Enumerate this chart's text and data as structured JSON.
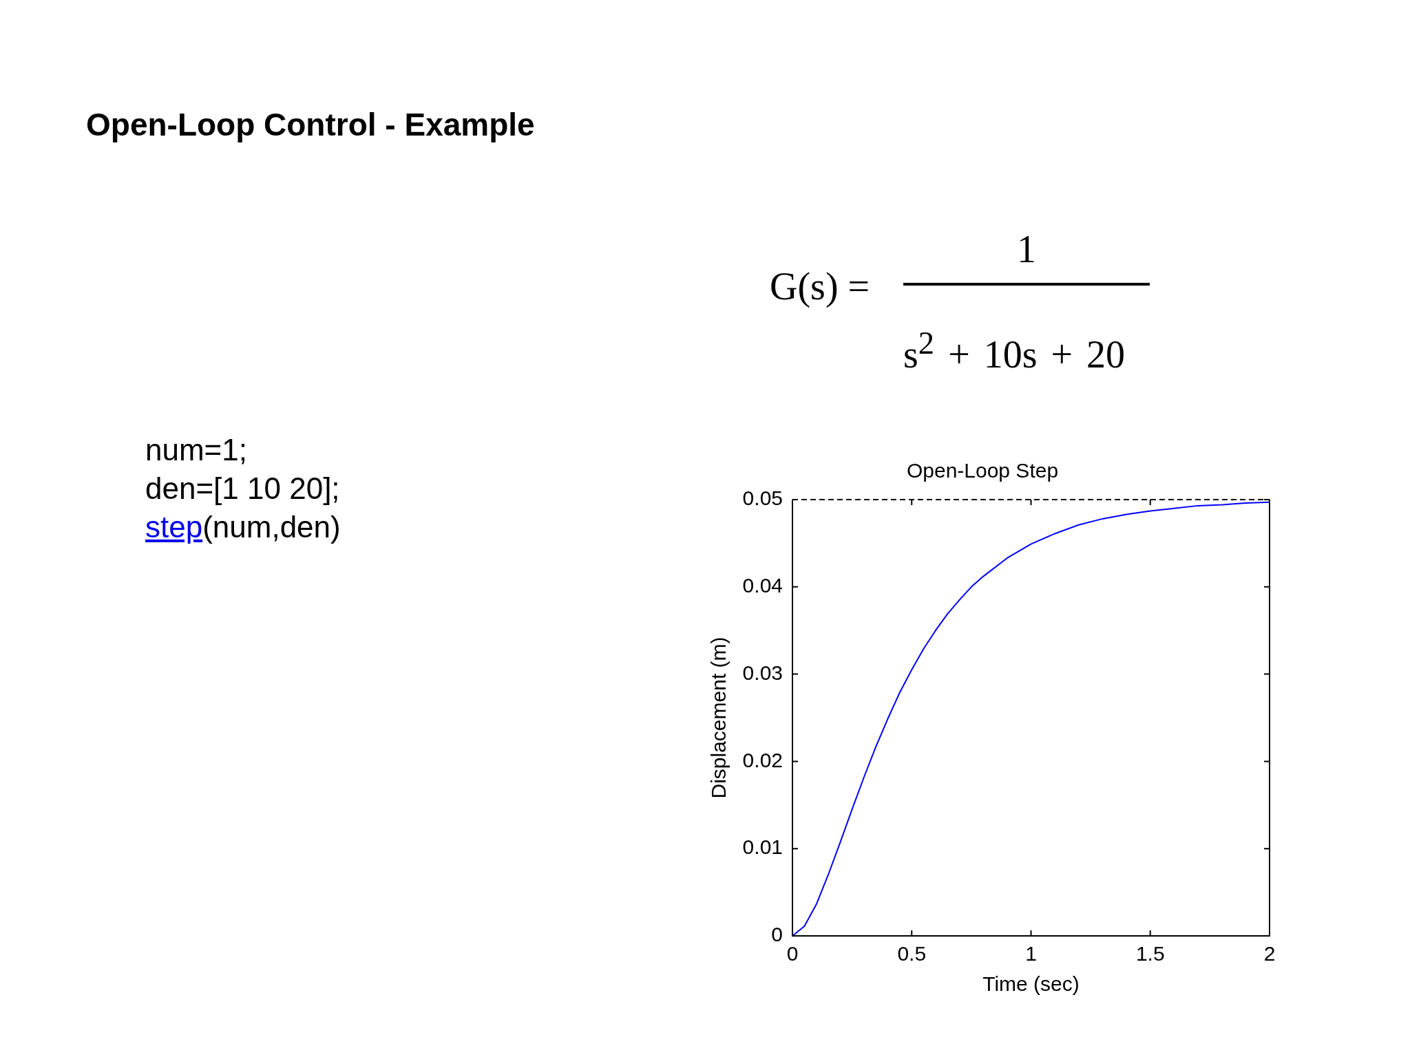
{
  "chart_data": {
    "type": "line",
    "title": "Open-Loop Step",
    "xlabel": "Time (sec)",
    "ylabel": "Displacement (m)",
    "x": [
      0,
      0.05,
      0.1,
      0.15,
      0.2,
      0.25,
      0.3,
      0.35,
      0.4,
      0.45,
      0.5,
      0.55,
      0.6,
      0.65,
      0.7,
      0.75,
      0.8,
      0.9,
      1,
      1.1,
      1.2,
      1.3,
      1.4,
      1.5,
      1.6,
      1.7,
      1.8,
      1.9,
      2
    ],
    "values": [
      0,
      0.0011,
      0.0036,
      0.007,
      0.0107,
      0.0145,
      0.0182,
      0.0217,
      0.0249,
      0.0279,
      0.0305,
      0.0329,
      0.035,
      0.0369,
      0.0385,
      0.04,
      0.0412,
      0.0433,
      0.0449,
      0.0461,
      0.0471,
      0.0478,
      0.0483,
      0.0487,
      0.049,
      0.0493,
      0.0494,
      0.0496,
      0.0497
    ],
    "color": "#0000ff",
    "xlim": [
      0,
      2
    ],
    "xticks": [
      0,
      0.5,
      1,
      1.5,
      2
    ],
    "ylim": [
      0,
      0.05
    ],
    "yticks": [
      0,
      0.01,
      0.02,
      0.03,
      0.04,
      0.05
    ],
    "ref_lines": [
      {
        "axis": "y",
        "value": 0.05,
        "color": "#000000",
        "line_style": "dashed"
      }
    ],
    "annotations": [
      "Open-Loop Control - Example",
      "G(s) =",
      "1",
      "s$^{2}$ + 10s + 20",
      "num=1;",
      "den=[1 10 20];",
      "step",
      "(num,den)"
    ]
  }
}
